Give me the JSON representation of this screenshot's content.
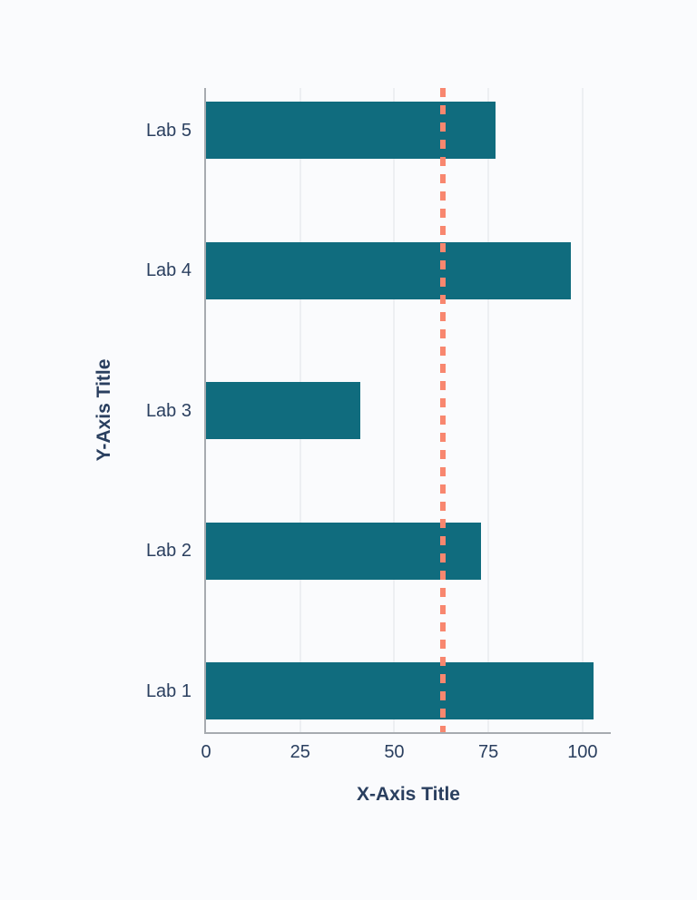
{
  "chart_data": {
    "type": "bar",
    "orientation": "horizontal",
    "order": "top-to-bottom",
    "categories": [
      "Lab 5",
      "Lab 4",
      "Lab 3",
      "Lab 2",
      "Lab 1"
    ],
    "values": [
      77,
      97,
      41,
      73,
      103
    ],
    "title": "",
    "xlabel": "X-Axis Title",
    "ylabel": "Y-Axis Title",
    "xlim": [
      0,
      107.5
    ],
    "xticks": [
      0,
      25,
      50,
      75,
      100
    ],
    "xtick_labels": [
      "0",
      "25",
      "50",
      "75",
      "100"
    ],
    "grid": true,
    "legend": false,
    "reference_line": {
      "value": 63,
      "orientation": "vertical",
      "style": "dashed",
      "color": "#f8876f"
    },
    "colors": {
      "bar": "#106c7e",
      "axis_line": "#a7abb0",
      "gridline": "#edeff2",
      "text": "#2a3f5f",
      "background": "#fafbfd"
    }
  }
}
